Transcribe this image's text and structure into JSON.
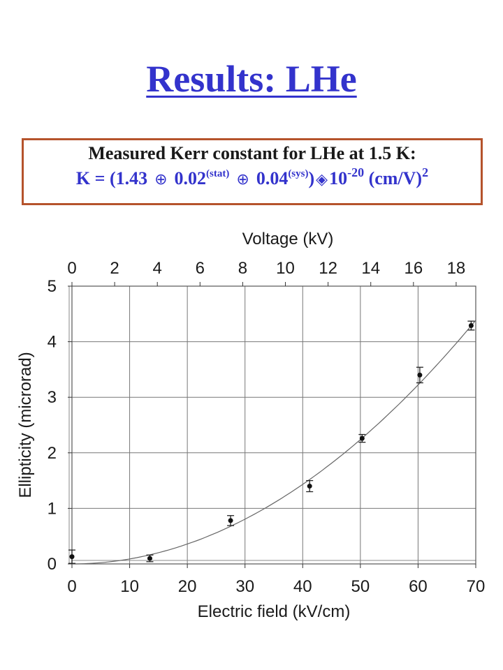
{
  "title": "Results: LHe",
  "result_box": {
    "line1": "Measured Kerr constant for LHe at 1.5 K:",
    "prefix": "K = (1.43",
    "pm_symbol": "⊕",
    "stat_value": "0.02",
    "stat_label": "(stat)",
    "sys_value": "0.04",
    "sys_label": "(sys)",
    "close_paren": ")",
    "times_symbol": "◈",
    "power_base": "10",
    "power_exp": "-20",
    "unit": "(cm/V)",
    "unit_exp": "2"
  },
  "colors": {
    "title": "#3333cc",
    "box_border": "#b5532c",
    "formula": "#3333cc"
  },
  "chart_data": {
    "type": "scatter",
    "xlabel": "Electric field (kV/cm)",
    "ylabel": "Ellipticity (microrad)",
    "top_xlabel": "Voltage (kV)",
    "xlim": [
      0,
      70
    ],
    "ylim": [
      0,
      5
    ],
    "x_ticks": [
      0,
      10,
      20,
      30,
      40,
      50,
      60,
      70
    ],
    "y_ticks": [
      0,
      1,
      2,
      3,
      4,
      5
    ],
    "top_x_ticks": [
      0,
      2,
      4,
      6,
      8,
      10,
      12,
      14,
      16,
      18
    ],
    "top_x_per_unit": 3.7,
    "grid": true,
    "points": [
      {
        "x": 0,
        "y": 0.13,
        "err": 0.12
      },
      {
        "x": 13.5,
        "y": 0.1,
        "err": 0.06
      },
      {
        "x": 27.5,
        "y": 0.78,
        "err": 0.09
      },
      {
        "x": 41.2,
        "y": 1.4,
        "err": 0.1
      },
      {
        "x": 50.3,
        "y": 2.26,
        "err": 0.07
      },
      {
        "x": 60.3,
        "y": 3.4,
        "err": 0.14
      },
      {
        "x": 69.2,
        "y": 4.29,
        "err": 0.08
      }
    ],
    "fit": {
      "type": "quadratic",
      "coefficient": 0.000895
    }
  }
}
